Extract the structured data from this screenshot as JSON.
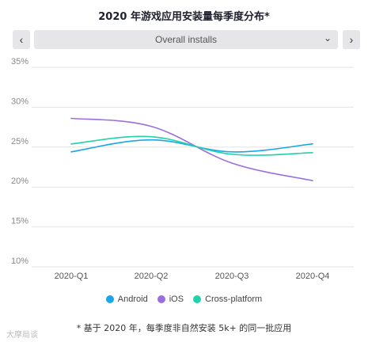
{
  "title": "2020 年游戏应用安装量每季度分布*",
  "nav": {
    "prev": "‹",
    "next": "›"
  },
  "selector": {
    "value": "Overall installs"
  },
  "legend": [
    {
      "label": "Android",
      "color": "#1aa6e8"
    },
    {
      "label": "iOS",
      "color": "#9b6ee0"
    },
    {
      "label": "Cross-platform",
      "color": "#1ed3ab"
    }
  ],
  "footnote": "* 基于 2020 年，每季度非自然安装 5k+ 的同一批应用",
  "watermark": "大摩局谈",
  "chart_data": {
    "type": "line",
    "categories": [
      "2020-Q1",
      "2020-Q2",
      "2020-Q3",
      "2020-Q4"
    ],
    "y_tick_labels": [
      "35%",
      "30%",
      "25%",
      "20%",
      "15%",
      "10%"
    ],
    "ylim": [
      10,
      35
    ],
    "yticks": [
      10,
      15,
      20,
      25,
      30,
      35
    ],
    "grid": true,
    "legend_position": "bottom",
    "series": [
      {
        "name": "Android",
        "color": "#1aa6e8",
        "values": [
          24.4,
          25.9,
          24.4,
          25.4
        ]
      },
      {
        "name": "iOS",
        "color": "#9b6ee0",
        "values": [
          28.6,
          27.6,
          23.0,
          20.8
        ]
      },
      {
        "name": "Cross-platform",
        "color": "#1ed3ab",
        "values": [
          25.4,
          26.3,
          24.1,
          24.3
        ]
      }
    ]
  }
}
